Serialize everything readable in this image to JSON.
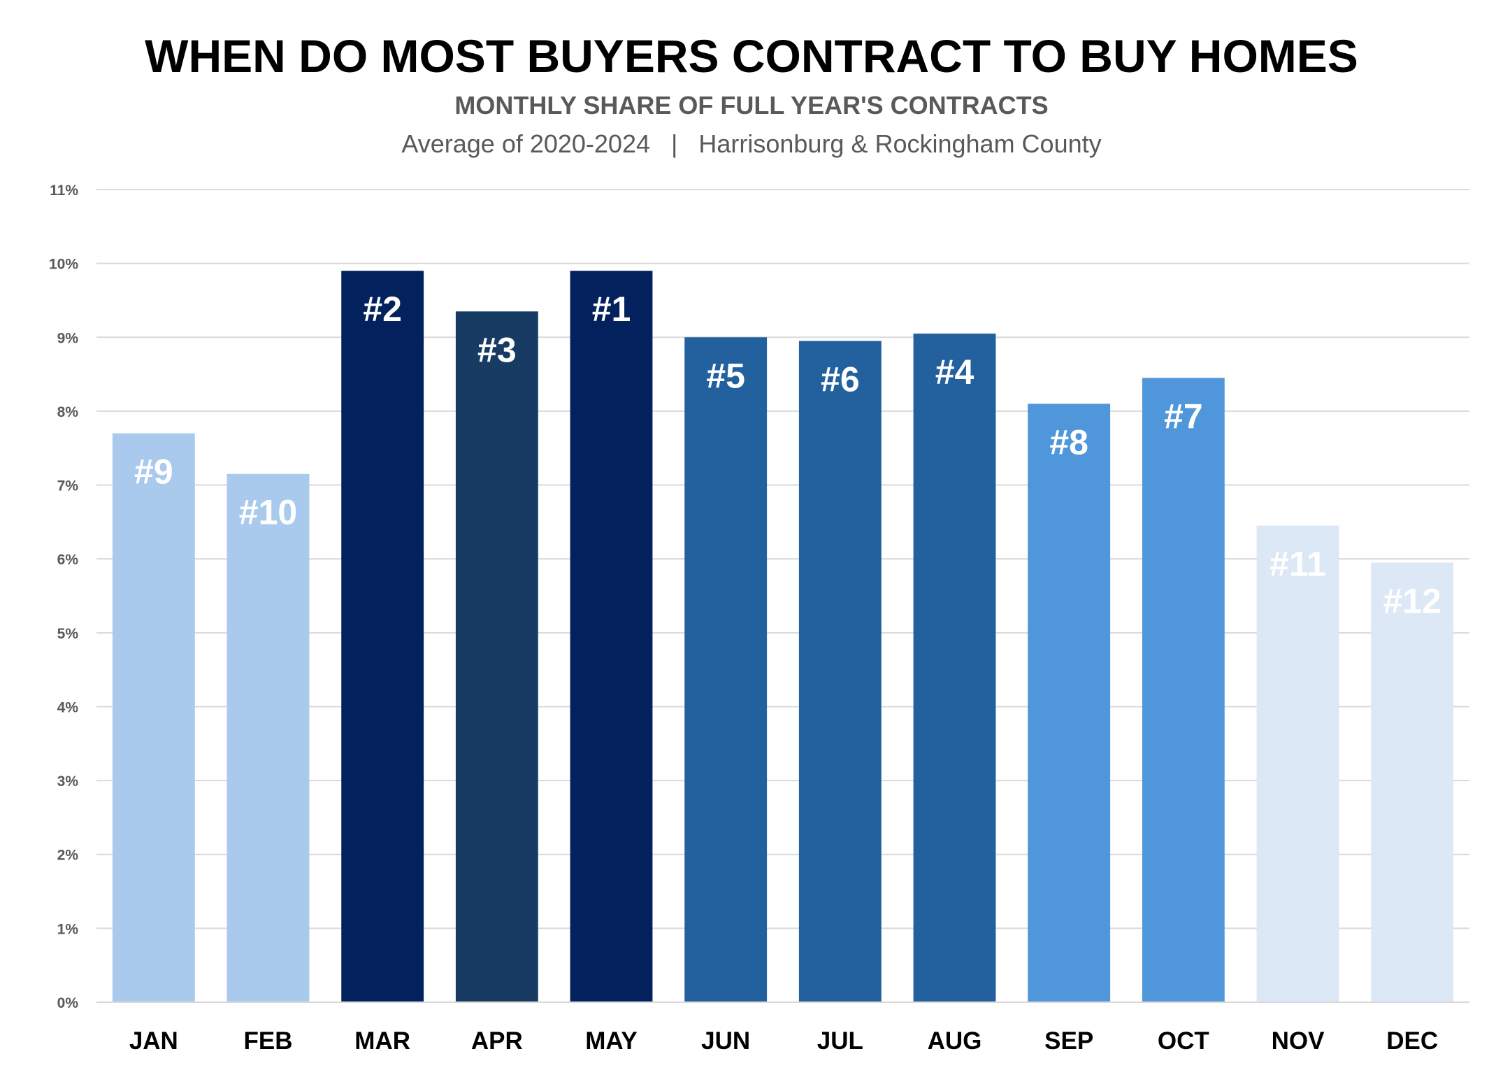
{
  "chart_data": {
    "type": "bar",
    "title": "WHEN DO MOST BUYERS CONTRACT TO BUY HOMES",
    "subtitle": "MONTHLY SHARE OF FULL YEAR'S CONTRACTS",
    "subtitle2": "Average of 2020-2024   |   Harrisonburg & Rockingham County",
    "categories": [
      "JAN",
      "FEB",
      "MAR",
      "APR",
      "MAY",
      "JUN",
      "JUL",
      "AUG",
      "SEP",
      "OCT",
      "NOV",
      "DEC"
    ],
    "values": [
      7.7,
      7.15,
      9.9,
      9.35,
      9.9,
      9.0,
      8.95,
      9.05,
      8.1,
      8.45,
      6.45,
      5.95
    ],
    "data_labels": [
      "#9",
      "#10",
      "#2",
      "#3",
      "#1",
      "#5",
      "#6",
      "#4",
      "#8",
      "#7",
      "#11",
      "#12"
    ],
    "bar_colors": [
      "#a9caec",
      "#a9caec",
      "#03215d",
      "#183b64",
      "#03215d",
      "#22609e",
      "#22609e",
      "#22609e",
      "#5096da",
      "#5096da",
      "#dce8f6",
      "#dce8f6"
    ],
    "ylim": [
      0,
      11
    ],
    "y_ticks": [
      "0%",
      "1%",
      "2%",
      "3%",
      "4%",
      "5%",
      "6%",
      "7%",
      "8%",
      "9%",
      "10%",
      "11%"
    ],
    "grid": true,
    "xlabel": "",
    "ylabel": ""
  }
}
